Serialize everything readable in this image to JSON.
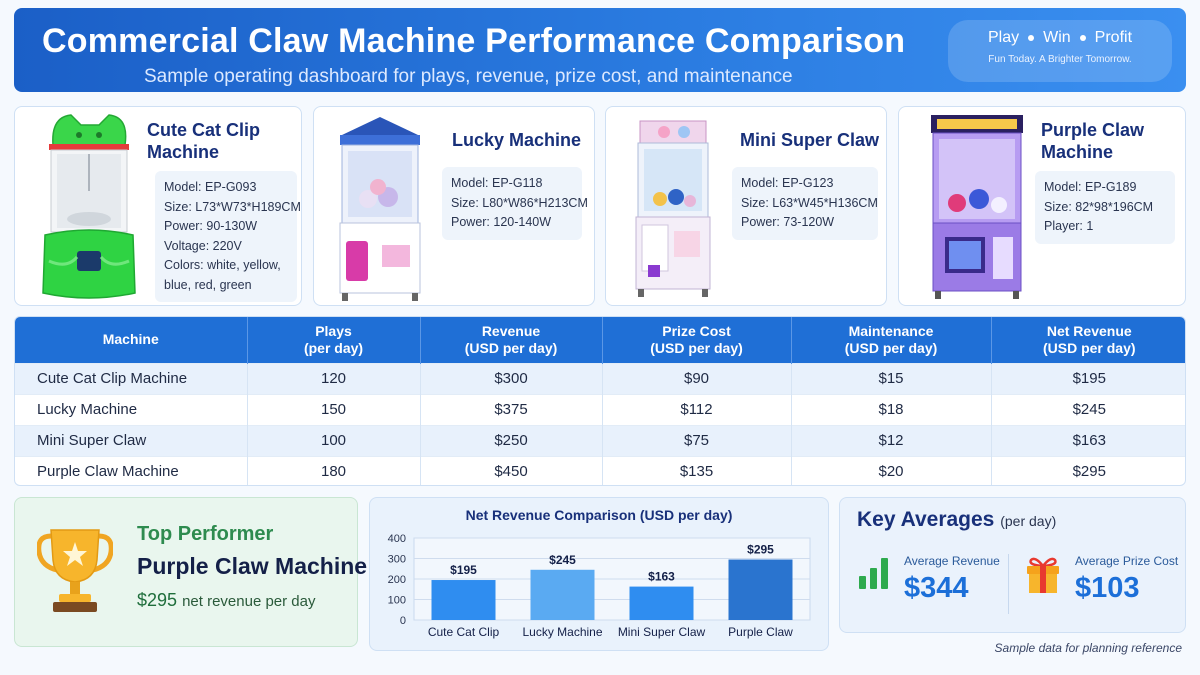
{
  "header": {
    "title": "Commercial Claw Machine Performance Comparison",
    "subtitle": "Sample operating dashboard for plays, revenue, prize cost, and maintenance",
    "slogan_words": [
      "Play",
      "Win",
      "Profit"
    ],
    "slogan_tagline": "Fun Today. A Brighter Tomorrow."
  },
  "machines": [
    {
      "name": "Cute Cat Clip Machine",
      "specs": [
        "Model:  EP-G093",
        "Size: L73*W73*H189CM",
        "Power:  90-130W",
        "Voltage: 220V",
        "Colors: white, yellow,",
        "blue, red, green"
      ]
    },
    {
      "name": "Lucky Machine",
      "specs": [
        "Model:  EP-G118",
        "Size:  L80*W86*H213CM",
        "Power:  120-140W"
      ]
    },
    {
      "name": "Mini Super Claw",
      "specs": [
        "Model:  EP-G123",
        "Size:  L63*W45*H136CM",
        "Power:  73-120W"
      ]
    },
    {
      "name": "Purple Claw Machine",
      "specs": [
        "Model:  EP-G189",
        "Size:  82*98*196CM",
        "Player: 1"
      ]
    }
  ],
  "table": {
    "headers": [
      {
        "main": "Machine",
        "sub": ""
      },
      {
        "main": "Plays",
        "sub": "(per day)"
      },
      {
        "main": "Revenue",
        "sub": "(USD per day)"
      },
      {
        "main": "Prize Cost",
        "sub": "(USD per day)"
      },
      {
        "main": "Maintenance",
        "sub": "(USD per day)"
      },
      {
        "main": "Net Revenue",
        "sub": "(USD per day)"
      }
    ],
    "rows": [
      [
        "Cute Cat Clip Machine",
        "120",
        "$300",
        "$90",
        "$15",
        "$195"
      ],
      [
        "Lucky Machine",
        "150",
        "$375",
        "$112",
        "$18",
        "$245"
      ],
      [
        "Mini Super Claw",
        "100",
        "$250",
        "$75",
        "$12",
        "$163"
      ],
      [
        "Purple Claw Machine",
        "180",
        "$450",
        "$135",
        "$20",
        "$295"
      ]
    ]
  },
  "top_performer": {
    "label": "Top Performer",
    "name": "Purple Claw Machine",
    "amount": "$295",
    "amount_suffix": "net revenue per day"
  },
  "chart_data": {
    "type": "bar",
    "title": "Net Revenue Comparison (USD per day)",
    "categories": [
      "Cute Cat Clip",
      "Lucky Machine",
      "Mini Super Claw",
      "Purple Claw"
    ],
    "values": [
      195,
      245,
      163,
      295
    ],
    "data_labels": [
      "$195",
      "$245",
      "$163",
      "$295"
    ],
    "ylim": [
      0,
      400
    ],
    "yticks": [
      0,
      100,
      200,
      300,
      400
    ],
    "grid": true,
    "colors": [
      "#2f8df0",
      "#5aaaf2",
      "#2f8df0",
      "#2a74cf"
    ]
  },
  "key_averages": {
    "title": "Key Averages",
    "title_suffix": "(per day)",
    "revenue_label": "Average Revenue",
    "revenue_value": "$344",
    "prize_label": "Average Prize Cost",
    "prize_value": "$103"
  },
  "footnote": "Sample data for planning reference",
  "icons": [
    "trophy-icon",
    "bar-chart-icon",
    "gift-icon"
  ]
}
